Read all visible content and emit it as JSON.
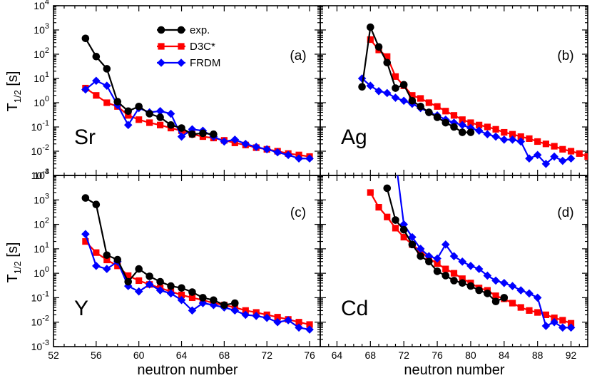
{
  "chart_data": {
    "type": "line",
    "xlabel": "neutron number",
    "ylabel": "T",
    "ylabel_sub": "1/2",
    "ylabel_unit": " [s]",
    "yscale": "log",
    "ylim": [
      0.001,
      10000
    ],
    "y_ticks": [
      {
        "v": 0.001,
        "base": "10",
        "exp": "-3"
      },
      {
        "v": 0.01,
        "base": "10",
        "exp": "-2"
      },
      {
        "v": 0.1,
        "base": "10",
        "exp": "-1"
      },
      {
        "v": 1,
        "base": "10",
        "exp": "0"
      },
      {
        "v": 10,
        "base": "10",
        "exp": "1"
      },
      {
        "v": 100,
        "base": "10",
        "exp": "2"
      },
      {
        "v": 1000,
        "base": "10",
        "exp": "3"
      },
      {
        "v": 10000,
        "base": "10",
        "exp": "4"
      }
    ],
    "legend": {
      "placement": "top-left of panel (a)",
      "entries": [
        {
          "name": "exp.",
          "color": "#000000",
          "marker": "circle"
        },
        {
          "name": "D3C*",
          "color": "#ff0000",
          "marker": "square"
        },
        {
          "name": "FRDM",
          "color": "#0000ff",
          "marker": "diamond"
        }
      ]
    },
    "panels": [
      {
        "id": "a",
        "label": "(a)",
        "element": "Sr",
        "xlim": [
          52,
          77
        ],
        "x_ticks": [
          52,
          56,
          60,
          64,
          68,
          72,
          76
        ],
        "series": [
          {
            "name": "exp.",
            "x": [
              55,
              56,
              57,
              58,
              59,
              60,
              61,
              62,
              63,
              64,
              65,
              66,
              67
            ],
            "y": [
              450,
              80,
              25,
              1.1,
              0.45,
              0.7,
              0.35,
              0.25,
              0.12,
              0.09,
              0.05,
              0.055,
              0.05
            ]
          },
          {
            "name": "D3C*",
            "x": [
              55,
              56,
              57,
              58,
              59,
              60,
              61,
              62,
              63,
              64,
              65,
              66,
              67,
              68,
              69,
              70,
              71,
              72,
              73,
              74,
              75,
              76
            ],
            "y": [
              4,
              2,
              1,
              0.7,
              0.3,
              0.2,
              0.15,
              0.12,
              0.09,
              0.07,
              0.05,
              0.04,
              0.035,
              0.028,
              0.022,
              0.018,
              0.014,
              0.012,
              0.01,
              0.008,
              0.007,
              0.006
            ]
          },
          {
            "name": "FRDM",
            "x": [
              55,
              56,
              57,
              58,
              59,
              60,
              61,
              62,
              63,
              64,
              65,
              66,
              67,
              68,
              69,
              70,
              71,
              72,
              73,
              74,
              75,
              76
            ],
            "y": [
              3.5,
              8,
              5,
              0.8,
              0.12,
              0.6,
              0.4,
              0.45,
              0.35,
              0.04,
              0.08,
              0.07,
              0.04,
              0.025,
              0.03,
              0.02,
              0.015,
              0.012,
              0.009,
              0.007,
              0.005,
              0.005
            ]
          }
        ]
      },
      {
        "id": "b",
        "label": "(b)",
        "element": "Ag",
        "xlim": [
          62,
          94
        ],
        "x_ticks": [
          64,
          68,
          72,
          76,
          80,
          84,
          88,
          92
        ],
        "series": [
          {
            "name": "exp.",
            "x": [
              67,
              68,
              69,
              70,
              71,
              72,
              73,
              74,
              75,
              76,
              77,
              78,
              79,
              80
            ],
            "y": [
              4.5,
              1300,
              200,
              45,
              4,
              5.5,
              1.2,
              0.7,
              0.4,
              0.25,
              0.15,
              0.1,
              0.06,
              0.06
            ]
          },
          {
            "name": "D3C*",
            "x": [
              68,
              69,
              70,
              71,
              72,
              73,
              74,
              75,
              76,
              77,
              78,
              79,
              80,
              81,
              82,
              83,
              84,
              85,
              86,
              87,
              88,
              89,
              90,
              91,
              92,
              93,
              94
            ],
            "y": [
              400,
              150,
              80,
              12,
              5,
              2,
              1.5,
              1,
              0.7,
              0.45,
              0.3,
              0.2,
              0.15,
              0.12,
              0.1,
              0.08,
              0.06,
              0.05,
              0.04,
              0.033,
              0.025,
              0.02,
              0.016,
              0.012,
              0.01,
              0.008,
              0.006
            ]
          },
          {
            "name": "FRDM",
            "x": [
              67,
              68,
              69,
              70,
              71,
              72,
              73,
              74,
              75,
              76,
              77,
              78,
              79,
              80,
              81,
              82,
              83,
              84,
              85,
              86,
              87,
              88,
              89,
              90,
              91,
              92
            ],
            "y": [
              10,
              5,
              3,
              2.5,
              1.6,
              1.2,
              0.9,
              0.6,
              0.4,
              0.3,
              0.2,
              0.15,
              0.12,
              0.09,
              0.07,
              0.05,
              0.04,
              0.03,
              0.03,
              0.025,
              0.005,
              0.007,
              0.003,
              0.006,
              0.004,
              0.005
            ]
          }
        ]
      },
      {
        "id": "c",
        "label": "(c)",
        "element": "Y",
        "xlim": [
          52,
          77
        ],
        "x_ticks": [
          52,
          56,
          60,
          64,
          68,
          72,
          76
        ],
        "series": [
          {
            "name": "exp.",
            "x": [
              55,
              56,
              57,
              58,
              59,
              60,
              61,
              62,
              63,
              64,
              65,
              66,
              67,
              68,
              69
            ],
            "y": [
              1200,
              650,
              5.5,
              3.6,
              0.45,
              1.5,
              0.75,
              0.45,
              0.3,
              0.25,
              0.17,
              0.1,
              0.08,
              0.05,
              0.06
            ]
          },
          {
            "name": "D3C*",
            "x": [
              55,
              56,
              57,
              58,
              59,
              60,
              61,
              62,
              63,
              64,
              65,
              66,
              67,
              68,
              69,
              70,
              71,
              72,
              73,
              74,
              75,
              76
            ],
            "y": [
              20,
              7,
              3.5,
              2,
              0.8,
              0.5,
              0.35,
              0.25,
              0.18,
              0.13,
              0.1,
              0.08,
              0.06,
              0.05,
              0.04,
              0.03,
              0.025,
              0.02,
              0.016,
              0.013,
              0.01,
              0.008
            ]
          },
          {
            "name": "FRDM",
            "x": [
              55,
              56,
              57,
              58,
              59,
              60,
              61,
              62,
              63,
              64,
              65,
              66,
              67,
              68,
              69,
              70,
              71,
              72,
              73,
              74,
              75,
              76
            ],
            "y": [
              40,
              2,
              1.5,
              3,
              0.3,
              0.18,
              0.35,
              0.2,
              0.15,
              0.08,
              0.03,
              0.06,
              0.05,
              0.04,
              0.03,
              0.02,
              0.018,
              0.015,
              0.01,
              0.012,
              0.006,
              0.005
            ]
          }
        ]
      },
      {
        "id": "d",
        "label": "(d)",
        "element": "Cd",
        "xlim": [
          62,
          94
        ],
        "x_ticks": [
          64,
          68,
          72,
          76,
          80,
          84,
          88,
          92
        ],
        "series": [
          {
            "name": "exp.",
            "x": [
              70,
              71,
              72,
              73,
              74,
              75,
              76,
              77,
              78,
              79,
              80,
              81,
              82,
              83,
              84
            ],
            "y": [
              3000,
              150,
              60,
              15,
              5,
              3,
              1.2,
              0.8,
              0.5,
              0.4,
              0.3,
              0.2,
              0.15,
              0.07,
              0.1
            ]
          },
          {
            "name": "D3C*",
            "x": [
              68,
              69,
              70,
              71,
              72,
              73,
              74,
              75,
              76,
              77,
              78,
              79,
              80,
              81,
              82,
              83,
              84,
              85,
              86,
              87,
              88,
              89,
              90,
              91,
              92
            ],
            "y": [
              2000,
              500,
              200,
              70,
              30,
              15,
              8,
              4,
              2.5,
              1.5,
              1,
              0.6,
              0.4,
              0.25,
              0.2,
              0.12,
              0.09,
              0.06,
              0.04,
              0.03,
              0.025,
              0.02,
              0.015,
              0.012,
              0.009
            ]
          },
          {
            "name": "FRDM",
            "x": [
              71,
              72,
              73,
              74,
              75,
              76,
              77,
              78,
              79,
              80,
              81,
              82,
              83,
              84,
              85,
              86,
              87,
              88,
              89,
              90,
              91,
              92
            ],
            "y": [
              50000,
              100,
              30,
              10,
              5,
              4,
              15,
              5,
              3,
              2,
              1.5,
              0.8,
              0.5,
              0.4,
              0.3,
              0.2,
              0.15,
              0.1,
              0.007,
              0.01,
              0.006,
              0.006
            ]
          }
        ]
      }
    ]
  }
}
